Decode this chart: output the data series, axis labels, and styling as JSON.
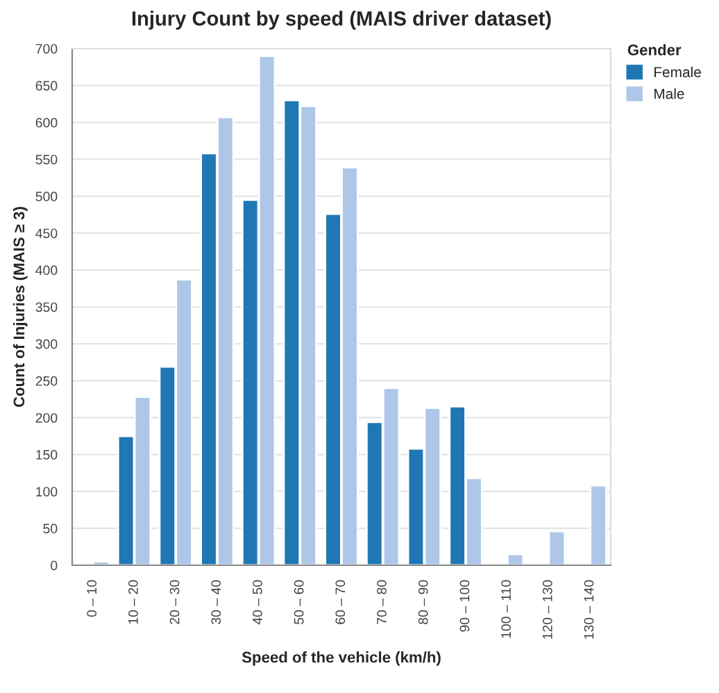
{
  "chart_data": {
    "type": "bar",
    "title": "Injury Count by speed (MAIS driver dataset)",
    "xlabel": "Speed of the vehicle (km/h)",
    "ylabel": "Count of Injuries (MAIS ≥ 3)",
    "legend_title": "Gender",
    "categories": [
      "0 – 10",
      "10 – 20",
      "20 – 30",
      "30 – 40",
      "40 – 50",
      "50 – 60",
      "60 – 70",
      "70 – 80",
      "80 – 90",
      "90 – 100",
      "100 – 110",
      "120 – 130",
      "130 – 140"
    ],
    "series": [
      {
        "name": "Female",
        "color": "#1f77b4",
        "values": [
          null,
          175,
          269,
          558,
          495,
          630,
          476,
          194,
          158,
          215,
          null,
          null,
          null
        ]
      },
      {
        "name": "Male",
        "color": "#aec7e8",
        "values": [
          5,
          228,
          387,
          607,
          690,
          622,
          539,
          240,
          213,
          118,
          15,
          46,
          108
        ]
      }
    ],
    "ylim": [
      0,
      700
    ],
    "yticks": [
      0,
      50,
      100,
      150,
      200,
      250,
      300,
      350,
      400,
      450,
      500,
      550,
      600,
      650,
      700
    ],
    "grid": "y",
    "legend": "top right"
  }
}
